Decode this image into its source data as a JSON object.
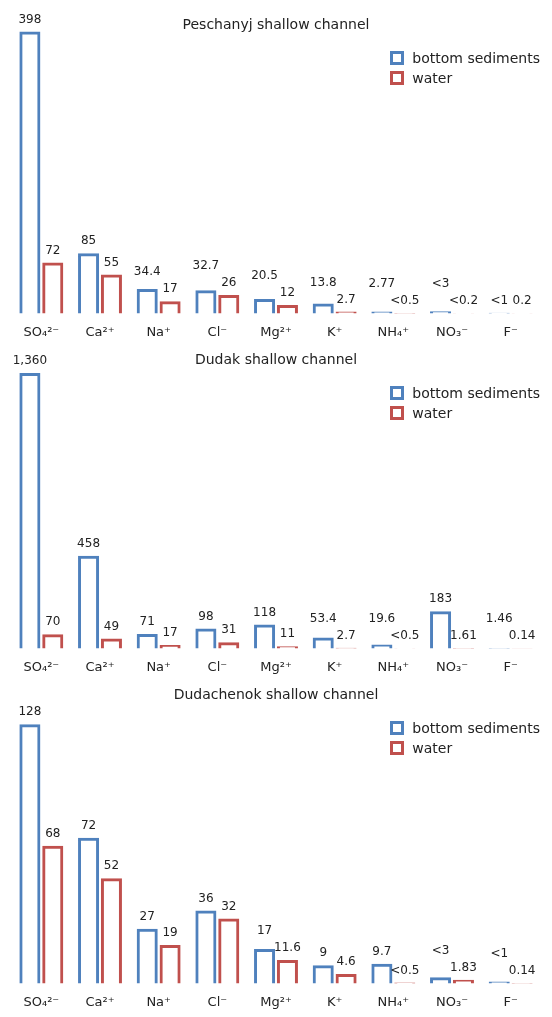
{
  "chart_data": [
    {
      "type": "bar",
      "title": "Peschanyj shallow channel",
      "legend": "top right",
      "categories": [
        "SO₄²⁻",
        "Ca²⁺",
        "Na⁺",
        "Cl⁻",
        "Mg²⁺",
        "K⁺",
        "NH₄⁺",
        "NO₃⁻",
        "F⁻"
      ],
      "series": [
        {
          "name": "bottom sediments",
          "color": "#4f81bd",
          "values": [
            398,
            85,
            34.4,
            32.7,
            20.5,
            13.8,
            2.77,
            3,
            1
          ],
          "value_labels": [
            "398",
            "85",
            "34.4",
            "32.7",
            "20.5",
            "13.8",
            "2.77",
            "<3",
            "<1"
          ]
        },
        {
          "name": "water",
          "color": "#c0504d",
          "values": [
            72,
            55,
            17,
            26,
            12,
            2.7,
            0.5,
            0.2,
            0.2
          ],
          "value_labels": [
            "72",
            "55",
            "17",
            "26",
            "12",
            "2.7",
            "<0.5",
            "<0.2",
            "0.2"
          ]
        }
      ]
    },
    {
      "type": "bar",
      "title": "Dudak shallow channel",
      "legend": "top right",
      "categories": [
        "SO₄²⁻",
        "Ca²⁺",
        "Na⁺",
        "Cl⁻",
        "Mg²⁺",
        "K⁺",
        "NH₄⁺",
        "NO₃⁻",
        "F⁻"
      ],
      "series": [
        {
          "name": "bottom sediments",
          "color": "#4f81bd",
          "values": [
            1360,
            458,
            71,
            98,
            118,
            53.4,
            19.6,
            183,
            1.46
          ],
          "value_labels": [
            "1,360",
            "458",
            "71",
            "98",
            "118",
            "53.4",
            "19.6",
            "183",
            "1.46"
          ]
        },
        {
          "name": "water",
          "color": "#c0504d",
          "values": [
            70,
            49,
            17,
            31,
            11,
            2.7,
            0.5,
            1.61,
            0.14
          ],
          "value_labels": [
            "70",
            "49",
            "17",
            "31",
            "11",
            "2.7",
            "<0.5",
            "1.61",
            "0.14"
          ]
        }
      ]
    },
    {
      "type": "bar",
      "title": "Dudachenok shallow channel",
      "legend": "top right",
      "categories": [
        "SO₄²⁻",
        "Ca²⁺",
        "Na⁺",
        "Cl⁻",
        "Mg²⁺",
        "K⁺",
        "NH₄⁺",
        "NO₃⁻",
        "F⁻"
      ],
      "series": [
        {
          "name": "bottom sediments",
          "color": "#4f81bd",
          "values": [
            128,
            72,
            27,
            36,
            17,
            9,
            9.7,
            3,
            1
          ],
          "value_labels": [
            "128",
            "72",
            "27",
            "36",
            "17",
            "9",
            "9.7",
            "<3",
            "<1"
          ]
        },
        {
          "name": "water",
          "color": "#c0504d",
          "values": [
            68,
            52,
            19,
            32,
            11.6,
            4.6,
            0.5,
            1.83,
            0.14
          ],
          "value_labels": [
            "68",
            "52",
            "19",
            "32",
            "11.6",
            "4.6",
            "<0.5",
            "1.83",
            "0.14"
          ]
        }
      ]
    }
  ]
}
